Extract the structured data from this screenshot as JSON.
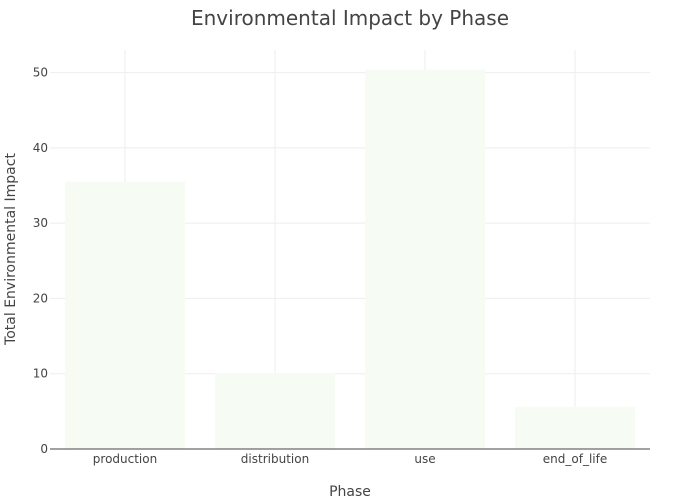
{
  "chart_data": {
    "type": "bar",
    "title": "Environmental Impact by Phase",
    "xlabel": "Phase",
    "ylabel": "Total Environmental Impact",
    "categories": [
      "production",
      "distribution",
      "use",
      "end_of_life"
    ],
    "values": [
      35.5,
      10.1,
      50.4,
      5.6
    ],
    "ylim": [
      0,
      53
    ],
    "yticks": [
      0,
      10,
      20,
      30,
      40,
      50
    ],
    "grid": true,
    "bar_color": "#f6fcf3",
    "grid_color": "#eeeeee",
    "axis_color": "#444444"
  }
}
